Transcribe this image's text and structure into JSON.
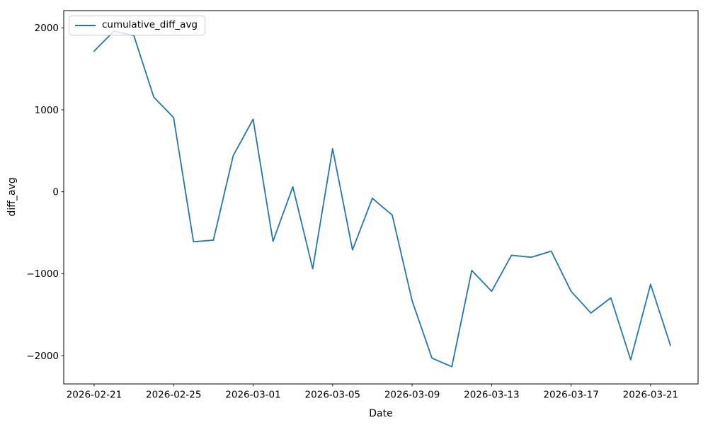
{
  "figure": {
    "background": "#ffffff",
    "text_color": "#000000",
    "spine_color": "#000000"
  },
  "legend": {
    "label": "cumulative_diff_avg",
    "swatch_color": "#1f77b4",
    "position": "upper left"
  },
  "chart_data": {
    "type": "line",
    "title": "",
    "xlabel": "Date",
    "ylabel": "diff_avg",
    "grid": false,
    "legend_position": "upper left",
    "line_color": "#1f77b4",
    "series": [
      {
        "name": "cumulative_diff_avg",
        "x": [
          "2026-02-21",
          "2026-02-22",
          "2026-02-23",
          "2026-02-24",
          "2026-02-25",
          "2026-02-26",
          "2026-02-27",
          "2026-02-28",
          "2026-03-01",
          "2026-03-02",
          "2026-03-03",
          "2026-03-04",
          "2026-03-05",
          "2026-03-06",
          "2026-03-07",
          "2026-03-08",
          "2026-03-09",
          "2026-03-10",
          "2026-03-11",
          "2026-03-12",
          "2026-03-13",
          "2026-03-14",
          "2026-03-15",
          "2026-03-16",
          "2026-03-17",
          "2026-03-18",
          "2026-03-19",
          "2026-03-20",
          "2026-03-21",
          "2026-03-22"
        ],
        "y": [
          1715,
          1960,
          1905,
          1155,
          905,
          -610,
          -590,
          440,
          885,
          -605,
          60,
          -940,
          525,
          -710,
          -80,
          -285,
          -1330,
          -2030,
          -2135,
          -960,
          -1215,
          -775,
          -800,
          -725,
          -1215,
          -1480,
          -1295,
          -2050,
          -1130,
          -1875
        ]
      }
    ],
    "xticks": {
      "indices": [
        0,
        4,
        8,
        12,
        16,
        20,
        24,
        28
      ],
      "labels": [
        "2026-02-21",
        "2026-02-25",
        "2026-03-01",
        "2026-03-05",
        "2026-03-09",
        "2026-03-13",
        "2026-03-17",
        "2026-03-21"
      ]
    },
    "yticks": [
      {
        "value": 2000,
        "label": "2000"
      },
      {
        "value": 1000,
        "label": "1000"
      },
      {
        "value": 0,
        "label": "0"
      },
      {
        "value": -1000,
        "label": "−1000"
      },
      {
        "value": -2000,
        "label": "−2000"
      }
    ],
    "ylim": [
      -2345,
      2210
    ],
    "xlim_days": [
      -1.53,
      30.39
    ]
  }
}
